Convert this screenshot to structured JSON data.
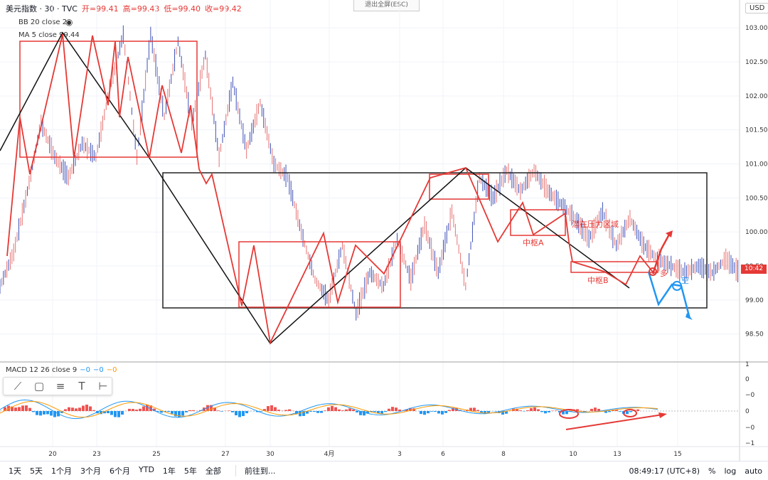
{
  "legend": {
    "symbol": "美元指数 · 30 · TVC",
    "open": "开=99.41",
    "high": "高=99.43",
    "low": "低=99.40",
    "close": "收=99.42",
    "bb": "BB 20 close 2",
    "ma": "MA 5 close",
    "ma_value": "99.44"
  },
  "esc_label": "退出全屏(ESC)",
  "currency": "USD",
  "last_price": "10:42",
  "macd": {
    "label": "MACD 12 26 close 9",
    "v1": "−0",
    "v2": "−0",
    "v3": "−0"
  },
  "annotations": {
    "pressure_zone": "潜在压力区域",
    "pivot_a": "中枢A",
    "pivot_b": "中枢B",
    "long": "多",
    "short": "空"
  },
  "bottom": {
    "ranges": [
      "1天",
      "5天",
      "1个月",
      "3个月",
      "6个月",
      "YTD",
      "1年",
      "5年",
      "全部"
    ],
    "goto": "前往到...",
    "time": "08:49:17 (UTC+8)",
    "pct": "%",
    "log": "log",
    "auto": "auto"
  },
  "chart_data": {
    "type": "line",
    "title": "美元指数 · 30 · TVC",
    "y_ticks": [
      "103.00",
      "102.50",
      "102.00",
      "101.50",
      "101.00",
      "100.50",
      "100.00",
      "99.50",
      "99.00",
      "98.50"
    ],
    "x_ticks": [
      "20",
      "23",
      "25",
      "27",
      "30",
      "4月",
      "3",
      "6",
      "8",
      "10",
      "13",
      "15"
    ],
    "macd_ticks": [
      "1",
      "0",
      "−0",
      "−1",
      "0",
      "−0",
      "−1"
    ],
    "ylim": [
      98.1,
      103.2
    ],
    "series": [
      {
        "values": [
          99.2,
          99.7,
          100.6,
          101.6,
          101.1,
          100.8,
          101.3,
          101.1,
          102.1,
          102.9,
          101.1,
          102.9,
          101.7,
          102.8,
          101.6,
          102.6,
          101.1,
          102.2,
          101.2,
          101.9,
          101.0,
          100.8,
          100.0,
          99.3,
          99.0,
          99.8,
          98.8,
          99.4,
          99.2,
          99.9,
          99.3,
          100.1,
          99.4,
          100.3,
          99.2,
          100.8,
          100.5,
          100.9,
          100.6,
          100.9,
          100.6,
          100.4,
          100.2,
          99.9,
          100.3,
          99.8,
          100.2,
          99.8,
          99.6,
          99.5,
          99.4,
          99.5,
          99.4,
          99.6,
          99.4
        ]
      }
    ]
  }
}
